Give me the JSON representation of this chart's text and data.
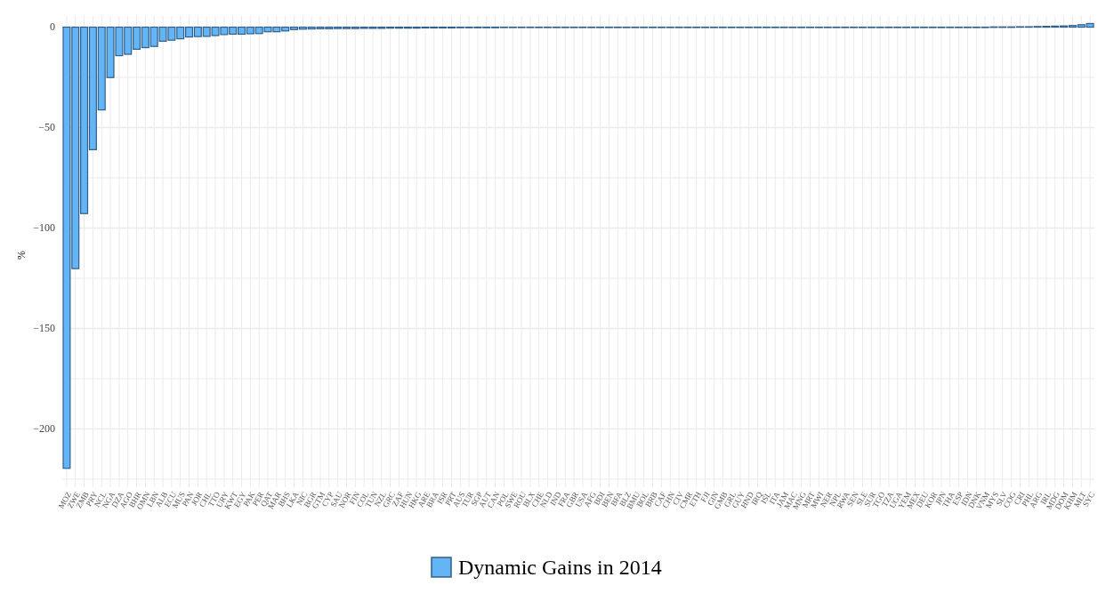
{
  "chart_data": {
    "type": "bar",
    "ylabel": "%",
    "categories": [
      "MOZ",
      "ZWE",
      "ZMB",
      "PRY",
      "NCL",
      "NGA",
      "DZA",
      "AGO",
      "BHR",
      "OMN",
      "LBN",
      "ALB",
      "ECU",
      "MUS",
      "PAN",
      "JOR",
      "CHL",
      "TTO",
      "URY",
      "KWT",
      "EGY",
      "PAK",
      "PER",
      "QAT",
      "MAR",
      "BHS",
      "LKA",
      "NIC",
      "BGR",
      "GTM",
      "CYP",
      "SAU",
      "NOR",
      "FIN",
      "COL",
      "TUN",
      "NZL",
      "GRC",
      "ZAF",
      "HUN",
      "HKG",
      "ARE",
      "BRA",
      "ISR",
      "PRT",
      "AUS",
      "TUR",
      "SGP",
      "AUT",
      "CAN",
      "POL",
      "SWE",
      "ROU",
      "BLX",
      "CHE",
      "NLD",
      "IND",
      "FRA",
      "GBR",
      "USA",
      "AFG",
      "BDI",
      "BEN",
      "BFA",
      "BLZ",
      "BMU",
      "BOL",
      "BRB",
      "CAF",
      "CHN",
      "CIV",
      "CMR",
      "ETH",
      "FJI",
      "GIN",
      "GMB",
      "GRL",
      "GUY",
      "HND",
      "IRQ",
      "ISL",
      "ITA",
      "JAM",
      "MAC",
      "MNG",
      "MRT",
      "MWI",
      "NER",
      "NPL",
      "RWA",
      "SEN",
      "SLE",
      "SUR",
      "TGO",
      "TZA",
      "UGA",
      "YEM",
      "MEX",
      "DEU",
      "KOR",
      "JPN",
      "THA",
      "ESP",
      "IDN",
      "DNK",
      "VNM",
      "MYS",
      "SLV",
      "COG",
      "CRI",
      "PHL",
      "ARG",
      "IRL",
      "MDG",
      "DOM",
      "KHM",
      "MLT",
      "SYC"
    ],
    "series": [
      {
        "name": "Dynamic Gains in 2014",
        "color": "#64b5f6",
        "values": [
          -219.6,
          -120.2,
          -92.8,
          -61,
          -41.2,
          -25.1,
          -14.2,
          -13.5,
          -11,
          -10.2,
          -9.6,
          -7,
          -6.5,
          -5.8,
          -4.9,
          -4.7,
          -4.6,
          -4.2,
          -3.7,
          -3.5,
          -3.5,
          -3.3,
          -3.2,
          -2.3,
          -2.3,
          -1.9,
          -1.2,
          -1,
          -0.9,
          -0.8,
          -0.8,
          -0.7,
          -0.7,
          -0.7,
          -0.6,
          -0.6,
          -0.6,
          -0.5,
          -0.5,
          -0.5,
          -0.5,
          -0.4,
          -0.4,
          -0.4,
          -0.4,
          -0.3,
          -0.3,
          -0.3,
          -0.3,
          -0.3,
          -0.2,
          -0.2,
          -0.2,
          -0.2,
          -0.2,
          -0.1,
          -0.1,
          -0.1,
          -0.1,
          -0.1,
          0,
          0,
          0,
          0,
          0,
          0,
          0,
          0,
          0,
          0,
          0,
          0,
          0,
          0,
          0,
          0,
          0,
          0,
          0,
          0,
          0,
          0,
          0,
          0,
          0,
          0,
          0,
          0,
          0,
          0,
          0,
          0,
          0,
          0,
          0,
          0,
          0,
          0,
          0,
          0,
          0,
          0,
          0,
          0,
          0,
          0,
          0.1,
          0.1,
          0.1,
          0.2,
          0.2,
          0.3,
          0.4,
          0.5,
          0.6,
          0.8,
          1.2,
          1.8
        ]
      }
    ],
    "ylim": [
      -229,
      2
    ],
    "yticks": [
      {
        "value": -225,
        "label": null
      },
      {
        "value": -200,
        "label": "−200"
      },
      {
        "value": -175,
        "label": null
      },
      {
        "value": -150,
        "label": "−150"
      },
      {
        "value": -125,
        "label": null
      },
      {
        "value": -100,
        "label": "−100"
      },
      {
        "value": -75,
        "label": null
      },
      {
        "value": -50,
        "label": "−50"
      },
      {
        "value": -25,
        "label": null
      },
      0
    ],
    "grid": true,
    "legend": "bottom"
  }
}
